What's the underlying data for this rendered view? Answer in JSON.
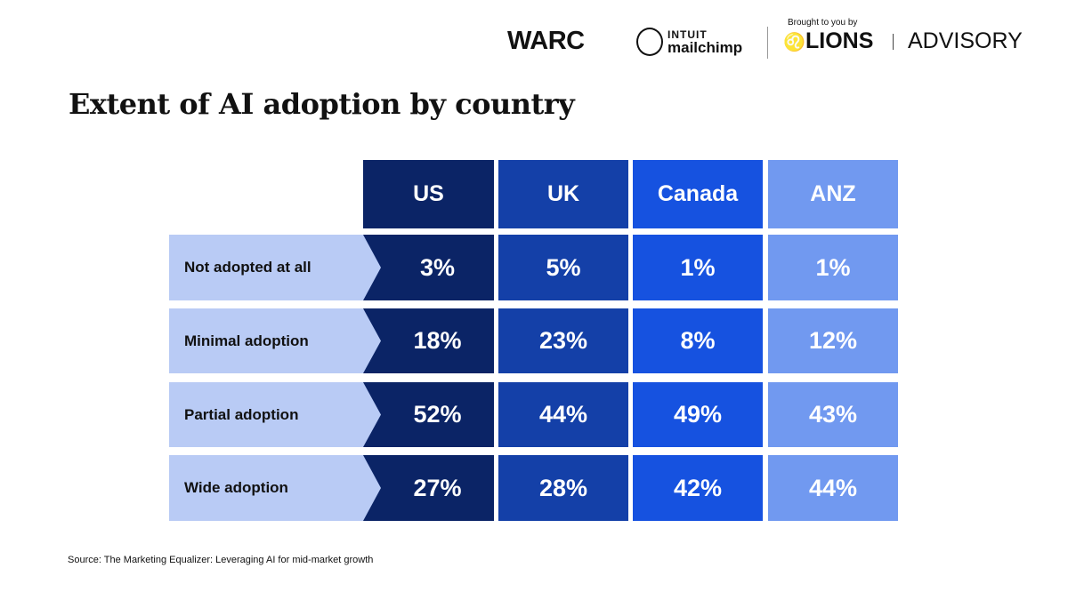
{
  "logos": {
    "warc": "WARC",
    "intuit": "INTUIT",
    "mailchimp": "mailchimp",
    "brought": "Brought to you by",
    "lions": "LIONS",
    "advisory": "ADVISORY"
  },
  "colors": {
    "US": "#0b2466",
    "UK": "#1440a8",
    "Canada": "#1652e0",
    "ANZ": "#7199f0",
    "label": "#b9cbf5"
  },
  "chart_data": {
    "type": "table",
    "title": "Extent of AI adoption by country",
    "columns": [
      "US",
      "UK",
      "Canada",
      "ANZ"
    ],
    "rows": [
      {
        "label": "Not adopted at all",
        "values": [
          "3%",
          "5%",
          "1%",
          "1%"
        ]
      },
      {
        "label": "Minimal adoption",
        "values": [
          "18%",
          "23%",
          "8%",
          "12%"
        ]
      },
      {
        "label": "Partial adoption",
        "values": [
          "52%",
          "44%",
          "49%",
          "43%"
        ]
      },
      {
        "label": "Wide adoption",
        "values": [
          "27%",
          "28%",
          "42%",
          "44%"
        ]
      }
    ],
    "source": "Source: The Marketing Equalizer: Leveraging AI for mid-market growth"
  }
}
